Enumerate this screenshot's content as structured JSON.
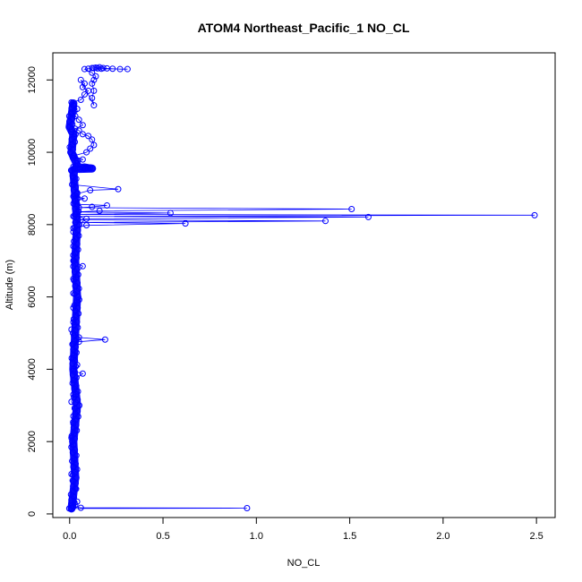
{
  "chart_data": {
    "type": "scatter",
    "title": "ATOM4 Northeast_Pacific_1 NO_CL",
    "xlabel": "NO_CL",
    "ylabel": "Altitude (m)",
    "xlim": [
      -0.09,
      2.6
    ],
    "ylim": [
      -100,
      12750
    ],
    "xticks": [
      0.0,
      0.5,
      1.0,
      1.5,
      2.0,
      2.5
    ],
    "xtick_labels": [
      "0.0",
      "0.5",
      "1.0",
      "1.5",
      "2.0",
      "2.5"
    ],
    "yticks": [
      0,
      2000,
      4000,
      6000,
      8000,
      10000,
      12000
    ],
    "ytick_labels": [
      "0",
      "2000",
      "4000",
      "6000",
      "8000",
      "10000",
      "12000"
    ],
    "grid": false,
    "colors": {
      "series": "#0000ff",
      "axis": "#000000"
    },
    "series": [
      {
        "marker": "open-circle",
        "line": true,
        "points": [
          [
            0.01,
            150
          ],
          [
            0.95,
            160
          ],
          [
            0.06,
            170
          ],
          [
            0.02,
            200
          ],
          [
            0.03,
            250
          ],
          [
            0.01,
            300
          ],
          [
            0.04,
            340
          ],
          [
            0.02,
            500
          ],
          [
            0.03,
            700
          ],
          [
            0.02,
            900
          ],
          [
            0.01,
            1100
          ],
          [
            0.02,
            1300
          ],
          [
            0.03,
            1500
          ],
          [
            0.02,
            1700
          ],
          [
            0.02,
            1900
          ],
          [
            0.01,
            2100
          ],
          [
            0.03,
            2300
          ],
          [
            0.02,
            2500
          ],
          [
            0.02,
            2700
          ],
          [
            0.03,
            2900
          ],
          [
            0.01,
            3100
          ],
          [
            0.02,
            3300
          ],
          [
            0.03,
            3500
          ],
          [
            0.02,
            3700
          ],
          [
            0.07,
            3880
          ],
          [
            0.02,
            3950
          ],
          [
            0.04,
            4120
          ],
          [
            0.02,
            4300
          ],
          [
            0.03,
            4500
          ],
          [
            0.02,
            4700
          ],
          [
            0.05,
            4760
          ],
          [
            0.19,
            4820
          ],
          [
            0.05,
            4880
          ],
          [
            0.03,
            4950
          ],
          [
            0.01,
            5100
          ],
          [
            0.02,
            5300
          ],
          [
            0.03,
            5500
          ],
          [
            0.02,
            5700
          ],
          [
            0.04,
            5900
          ],
          [
            0.02,
            6100
          ],
          [
            0.03,
            6300
          ],
          [
            0.02,
            6500
          ],
          [
            0.07,
            6850
          ],
          [
            0.02,
            7000
          ],
          [
            0.03,
            7200
          ],
          [
            0.02,
            7400
          ],
          [
            0.03,
            7600
          ],
          [
            0.02,
            7800
          ],
          [
            0.02,
            7900
          ],
          [
            0.09,
            7980
          ],
          [
            0.62,
            8030
          ],
          [
            0.03,
            8060
          ],
          [
            1.37,
            8100
          ],
          [
            0.06,
            8130
          ],
          [
            0.09,
            8160
          ],
          [
            1.6,
            8210
          ],
          [
            0.02,
            8230
          ],
          [
            2.49,
            8260
          ],
          [
            0.03,
            8280
          ],
          [
            0.54,
            8320
          ],
          [
            0.04,
            8350
          ],
          [
            0.16,
            8380
          ],
          [
            1.51,
            8430
          ],
          [
            0.05,
            8470
          ],
          [
            0.12,
            8490
          ],
          [
            0.2,
            8530
          ],
          [
            0.04,
            8560
          ],
          [
            0.03,
            8650
          ],
          [
            0.08,
            8720
          ],
          [
            0.02,
            8780
          ],
          [
            0.04,
            8850
          ],
          [
            0.11,
            8950
          ],
          [
            0.26,
            8980
          ],
          [
            0.02,
            9100
          ],
          [
            0.02,
            9300
          ],
          [
            0.01,
            9500
          ],
          [
            0.08,
            9540
          ],
          [
            0.11,
            9580
          ],
          [
            0.02,
            9600
          ],
          [
            0.04,
            9700
          ],
          [
            0.07,
            9800
          ],
          [
            0.02,
            9900
          ],
          [
            0.09,
            10000
          ],
          [
            0.11,
            10100
          ],
          [
            0.13,
            10200
          ],
          [
            0.12,
            10350
          ],
          [
            0.1,
            10450
          ],
          [
            0.07,
            10500
          ],
          [
            0.05,
            10600
          ],
          [
            0.03,
            10650
          ],
          [
            0.07,
            10750
          ],
          [
            0.05,
            10900
          ],
          [
            0.03,
            11000
          ],
          [
            0.01,
            11100
          ],
          [
            0.04,
            11200
          ],
          [
            0.02,
            11300
          ],
          [
            0.01,
            11380
          ],
          [
            0.06,
            11450
          ],
          [
            0.08,
            11600
          ],
          [
            0.1,
            11700
          ],
          [
            0.07,
            11800
          ],
          [
            0.08,
            11900
          ],
          [
            0.06,
            12000
          ],
          [
            0.13,
            11300
          ],
          [
            0.12,
            11500
          ],
          [
            0.13,
            11700
          ],
          [
            0.12,
            11900
          ],
          [
            0.13,
            12000
          ],
          [
            0.14,
            12100
          ],
          [
            0.12,
            12200
          ],
          [
            0.08,
            12300
          ],
          [
            0.1,
            12310
          ],
          [
            0.12,
            12330
          ],
          [
            0.14,
            12340
          ],
          [
            0.16,
            12350
          ],
          [
            0.18,
            12330
          ],
          [
            0.2,
            12320
          ],
          [
            0.23,
            12310
          ],
          [
            0.27,
            12300
          ],
          [
            0.31,
            12300
          ],
          [
            0.17,
            12310
          ],
          [
            0.15,
            12320
          ],
          [
            0.13,
            12330
          ]
        ]
      }
    ],
    "dense_band": {
      "description_points": [
        [
          0.01,
          150
        ],
        [
          0.03,
          1000
        ],
        [
          0.02,
          2000
        ],
        [
          0.04,
          3000
        ],
        [
          0.02,
          4000
        ],
        [
          0.03,
          5000
        ],
        [
          0.04,
          6000
        ],
        [
          0.03,
          7000
        ],
        [
          0.04,
          8000
        ],
        [
          0.03,
          8800
        ],
        [
          0.02,
          9500
        ],
        [
          0.03,
          9550
        ],
        [
          0.05,
          9560
        ],
        [
          0.08,
          9580
        ],
        [
          0.1,
          9560
        ],
        [
          0.12,
          9550
        ],
        [
          0.05,
          9540
        ],
        [
          0.01,
          10000
        ],
        [
          0.02,
          10500
        ],
        [
          0.0,
          10700
        ],
        [
          0.01,
          11000
        ],
        [
          0.02,
          11350
        ]
      ]
    }
  }
}
